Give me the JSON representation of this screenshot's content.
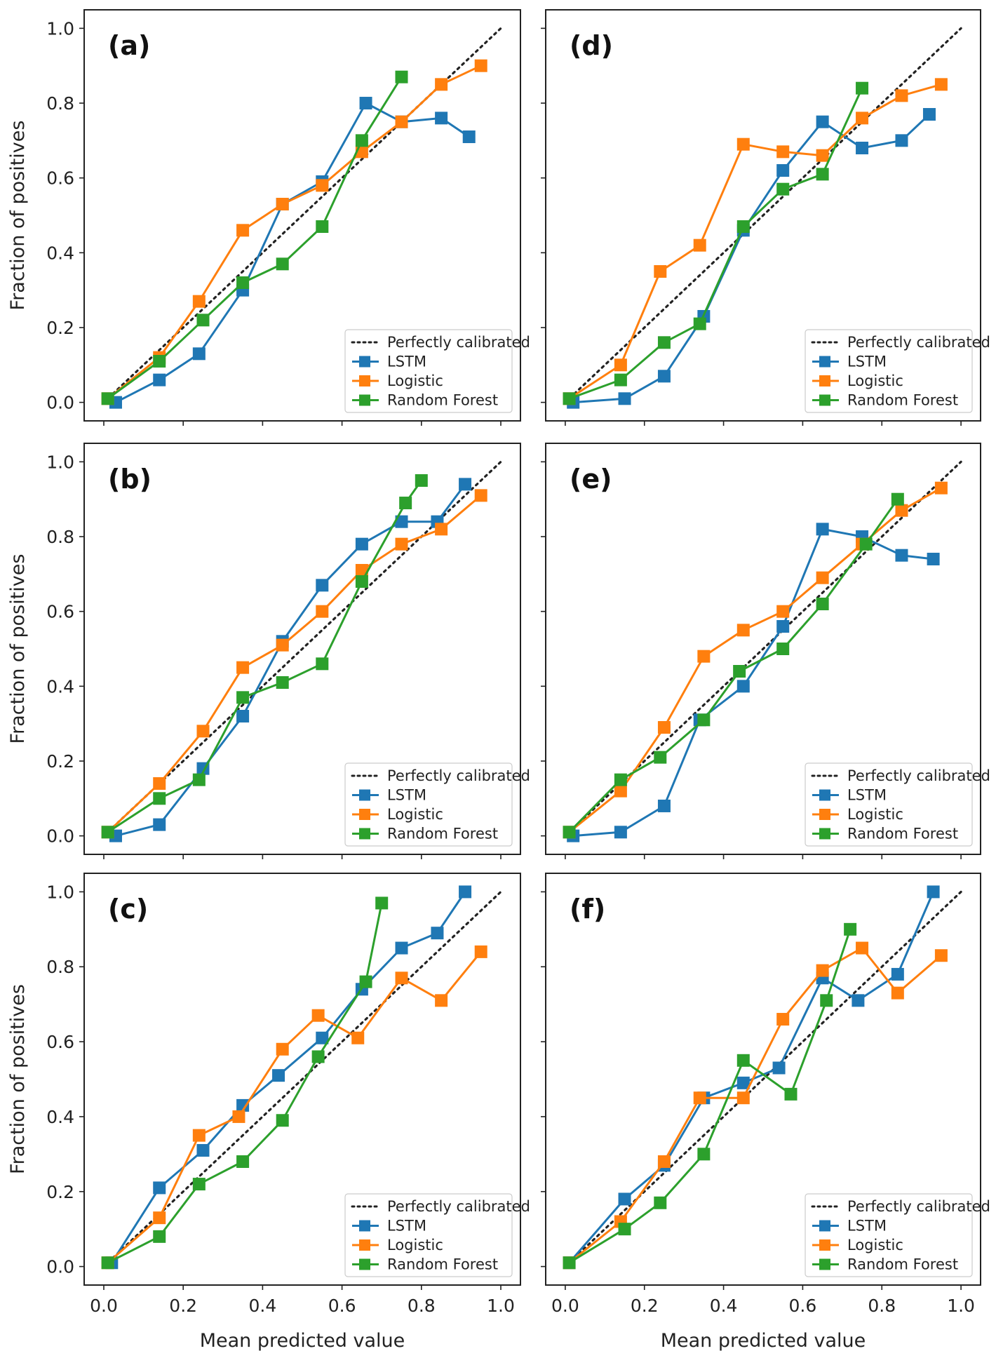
{
  "figure": {
    "xlabel": "Mean predicted value",
    "ylabel": "Fraction of positives",
    "xticks": [
      "0.0",
      "0.2",
      "0.4",
      "0.6",
      "0.8",
      "1.0"
    ],
    "yticks": [
      "0.0",
      "0.2",
      "0.4",
      "0.6",
      "0.8",
      "1.0"
    ]
  },
  "colors": {
    "LSTM": "#1f77b4",
    "Logistic": "#ff7f0e",
    "Random Forest": "#2ca02c",
    "diagonal": "#222222"
  },
  "chart_data": [
    {
      "type": "line",
      "panel": "(a)",
      "xlim": [
        0,
        1
      ],
      "ylim": [
        0,
        1
      ],
      "reference": {
        "name": "Perfectly calibrated",
        "x": [
          0,
          1
        ],
        "y": [
          0,
          1
        ]
      },
      "series": [
        {
          "name": "LSTM",
          "x": [
            0.03,
            0.14,
            0.24,
            0.35,
            0.45,
            0.55,
            0.66,
            0.75,
            0.85,
            0.92
          ],
          "y": [
            0.0,
            0.06,
            0.13,
            0.3,
            0.53,
            0.59,
            0.8,
            0.75,
            0.76,
            0.71
          ]
        },
        {
          "name": "Logistic",
          "x": [
            0.01,
            0.14,
            0.24,
            0.35,
            0.45,
            0.55,
            0.65,
            0.75,
            0.85,
            0.95
          ],
          "y": [
            0.01,
            0.12,
            0.27,
            0.46,
            0.53,
            0.58,
            0.67,
            0.75,
            0.85,
            0.9
          ]
        },
        {
          "name": "Random Forest",
          "x": [
            0.01,
            0.14,
            0.25,
            0.35,
            0.45,
            0.55,
            0.65,
            0.75
          ],
          "y": [
            0.01,
            0.11,
            0.22,
            0.32,
            0.37,
            0.47,
            0.7,
            0.87
          ]
        }
      ]
    },
    {
      "type": "line",
      "panel": "(b)",
      "xlim": [
        0,
        1
      ],
      "ylim": [
        0,
        1
      ],
      "reference": {
        "name": "Perfectly calibrated",
        "x": [
          0,
          1
        ],
        "y": [
          0,
          1
        ]
      },
      "series": [
        {
          "name": "LSTM",
          "x": [
            0.03,
            0.14,
            0.25,
            0.35,
            0.45,
            0.55,
            0.65,
            0.75,
            0.84,
            0.91
          ],
          "y": [
            0.0,
            0.03,
            0.18,
            0.32,
            0.52,
            0.67,
            0.78,
            0.84,
            0.84,
            0.94
          ]
        },
        {
          "name": "Logistic",
          "x": [
            0.01,
            0.14,
            0.25,
            0.35,
            0.45,
            0.55,
            0.65,
            0.75,
            0.85,
            0.95
          ],
          "y": [
            0.01,
            0.14,
            0.28,
            0.45,
            0.51,
            0.6,
            0.71,
            0.78,
            0.82,
            0.91
          ]
        },
        {
          "name": "Random Forest",
          "x": [
            0.01,
            0.14,
            0.24,
            0.35,
            0.45,
            0.55,
            0.65,
            0.76,
            0.8
          ],
          "y": [
            0.01,
            0.1,
            0.15,
            0.37,
            0.41,
            0.46,
            0.68,
            0.89,
            0.95
          ]
        }
      ]
    },
    {
      "type": "line",
      "panel": "(c)",
      "xlim": [
        0,
        1
      ],
      "ylim": [
        0,
        1
      ],
      "reference": {
        "name": "Perfectly calibrated",
        "x": [
          0,
          1
        ],
        "y": [
          0,
          1
        ]
      },
      "series": [
        {
          "name": "LSTM",
          "x": [
            0.02,
            0.14,
            0.25,
            0.35,
            0.44,
            0.55,
            0.65,
            0.75,
            0.84,
            0.91
          ],
          "y": [
            0.01,
            0.21,
            0.31,
            0.43,
            0.51,
            0.61,
            0.74,
            0.85,
            0.89,
            1.0
          ]
        },
        {
          "name": "Logistic",
          "x": [
            0.01,
            0.14,
            0.24,
            0.34,
            0.45,
            0.54,
            0.64,
            0.75,
            0.85,
            0.95
          ],
          "y": [
            0.01,
            0.13,
            0.35,
            0.4,
            0.58,
            0.67,
            0.61,
            0.77,
            0.71,
            0.84
          ]
        },
        {
          "name": "Random Forest",
          "x": [
            0.01,
            0.14,
            0.24,
            0.35,
            0.45,
            0.54,
            0.66,
            0.7
          ],
          "y": [
            0.01,
            0.08,
            0.22,
            0.28,
            0.39,
            0.56,
            0.76,
            0.97
          ]
        }
      ]
    },
    {
      "type": "line",
      "panel": "(d)",
      "xlim": [
        0,
        1
      ],
      "ylim": [
        0,
        1
      ],
      "reference": {
        "name": "Perfectly calibrated",
        "x": [
          0,
          1
        ],
        "y": [
          0,
          1
        ]
      },
      "series": [
        {
          "name": "LSTM",
          "x": [
            0.02,
            0.15,
            0.25,
            0.35,
            0.45,
            0.55,
            0.65,
            0.75,
            0.85,
            0.92
          ],
          "y": [
            0.0,
            0.01,
            0.07,
            0.23,
            0.46,
            0.62,
            0.75,
            0.68,
            0.7,
            0.77
          ]
        },
        {
          "name": "Logistic",
          "x": [
            0.01,
            0.14,
            0.24,
            0.34,
            0.45,
            0.55,
            0.65,
            0.75,
            0.85,
            0.95
          ],
          "y": [
            0.01,
            0.1,
            0.35,
            0.42,
            0.69,
            0.67,
            0.66,
            0.76,
            0.82,
            0.85
          ]
        },
        {
          "name": "Random Forest",
          "x": [
            0.01,
            0.14,
            0.25,
            0.34,
            0.45,
            0.55,
            0.65,
            0.75
          ],
          "y": [
            0.01,
            0.06,
            0.16,
            0.21,
            0.47,
            0.57,
            0.61,
            0.84
          ]
        }
      ]
    },
    {
      "type": "line",
      "panel": "(e)",
      "xlim": [
        0,
        1
      ],
      "ylim": [
        0,
        1
      ],
      "reference": {
        "name": "Perfectly calibrated",
        "x": [
          0,
          1
        ],
        "y": [
          0,
          1
        ]
      },
      "series": [
        {
          "name": "LSTM",
          "x": [
            0.02,
            0.14,
            0.25,
            0.34,
            0.45,
            0.55,
            0.65,
            0.75,
            0.85,
            0.93
          ],
          "y": [
            0.0,
            0.01,
            0.08,
            0.31,
            0.4,
            0.56,
            0.82,
            0.8,
            0.75,
            0.74
          ]
        },
        {
          "name": "Logistic",
          "x": [
            0.01,
            0.14,
            0.25,
            0.35,
            0.45,
            0.55,
            0.65,
            0.75,
            0.85,
            0.95
          ],
          "y": [
            0.01,
            0.12,
            0.29,
            0.48,
            0.55,
            0.6,
            0.69,
            0.78,
            0.87,
            0.93
          ]
        },
        {
          "name": "Random Forest",
          "x": [
            0.01,
            0.14,
            0.24,
            0.35,
            0.44,
            0.55,
            0.65,
            0.76,
            0.84
          ],
          "y": [
            0.01,
            0.15,
            0.21,
            0.31,
            0.44,
            0.5,
            0.62,
            0.78,
            0.9
          ]
        }
      ]
    },
    {
      "type": "line",
      "panel": "(f)",
      "xlim": [
        0,
        1
      ],
      "ylim": [
        0,
        1
      ],
      "reference": {
        "name": "Perfectly calibrated",
        "x": [
          0,
          1
        ],
        "y": [
          0,
          1
        ]
      },
      "series": [
        {
          "name": "LSTM",
          "x": [
            0.01,
            0.15,
            0.25,
            0.35,
            0.45,
            0.54,
            0.65,
            0.74,
            0.84,
            0.93
          ],
          "y": [
            0.01,
            0.18,
            0.27,
            0.45,
            0.49,
            0.53,
            0.77,
            0.71,
            0.78,
            1.0
          ]
        },
        {
          "name": "Logistic",
          "x": [
            0.01,
            0.14,
            0.25,
            0.34,
            0.45,
            0.55,
            0.65,
            0.75,
            0.84,
            0.95
          ],
          "y": [
            0.01,
            0.12,
            0.28,
            0.45,
            0.45,
            0.66,
            0.79,
            0.85,
            0.73,
            0.83
          ]
        },
        {
          "name": "Random Forest",
          "x": [
            0.01,
            0.15,
            0.24,
            0.35,
            0.45,
            0.57,
            0.66,
            0.72
          ],
          "y": [
            0.01,
            0.1,
            0.17,
            0.3,
            0.55,
            0.46,
            0.71,
            0.9
          ]
        }
      ]
    }
  ]
}
